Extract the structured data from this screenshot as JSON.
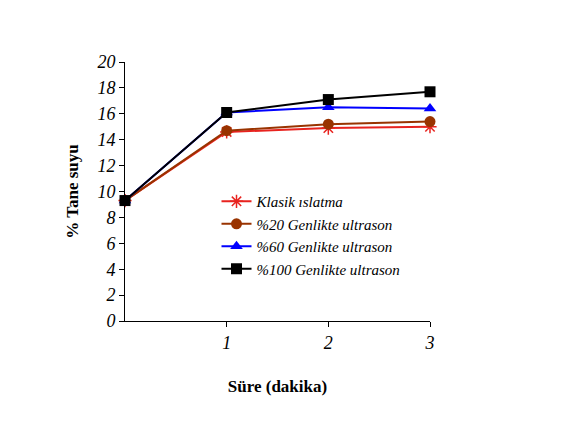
{
  "chart_data": {
    "type": "line",
    "x_label": "Süre (dakika)",
    "y_label": "% Tane suyu",
    "x": [
      0,
      1,
      2,
      3
    ],
    "xlim": [
      0,
      3
    ],
    "xticks": [
      1,
      2,
      3
    ],
    "ylim": [
      0,
      20
    ],
    "yticks": [
      0,
      2,
      4,
      6,
      8,
      10,
      12,
      14,
      16,
      18,
      20
    ],
    "grid": false,
    "series": [
      {
        "name": "Klasik ıslatma",
        "color": "#e8231f",
        "marker": "asterisk",
        "values": [
          9.3,
          14.6,
          14.9,
          15.0
        ]
      },
      {
        "name": "%20 Genlikte ultrason",
        "color": "#993300",
        "marker": "circle",
        "values": [
          9.3,
          14.7,
          15.2,
          15.4
        ]
      },
      {
        "name": "%60 Genlikte ultrason",
        "color": "#0000ff",
        "marker": "triangle",
        "values": [
          9.3,
          16.1,
          16.5,
          16.4
        ]
      },
      {
        "name": "%100 Genlikte ultrason",
        "color": "#000000",
        "marker": "square",
        "values": [
          9.3,
          16.1,
          17.1,
          17.7
        ]
      }
    ]
  }
}
